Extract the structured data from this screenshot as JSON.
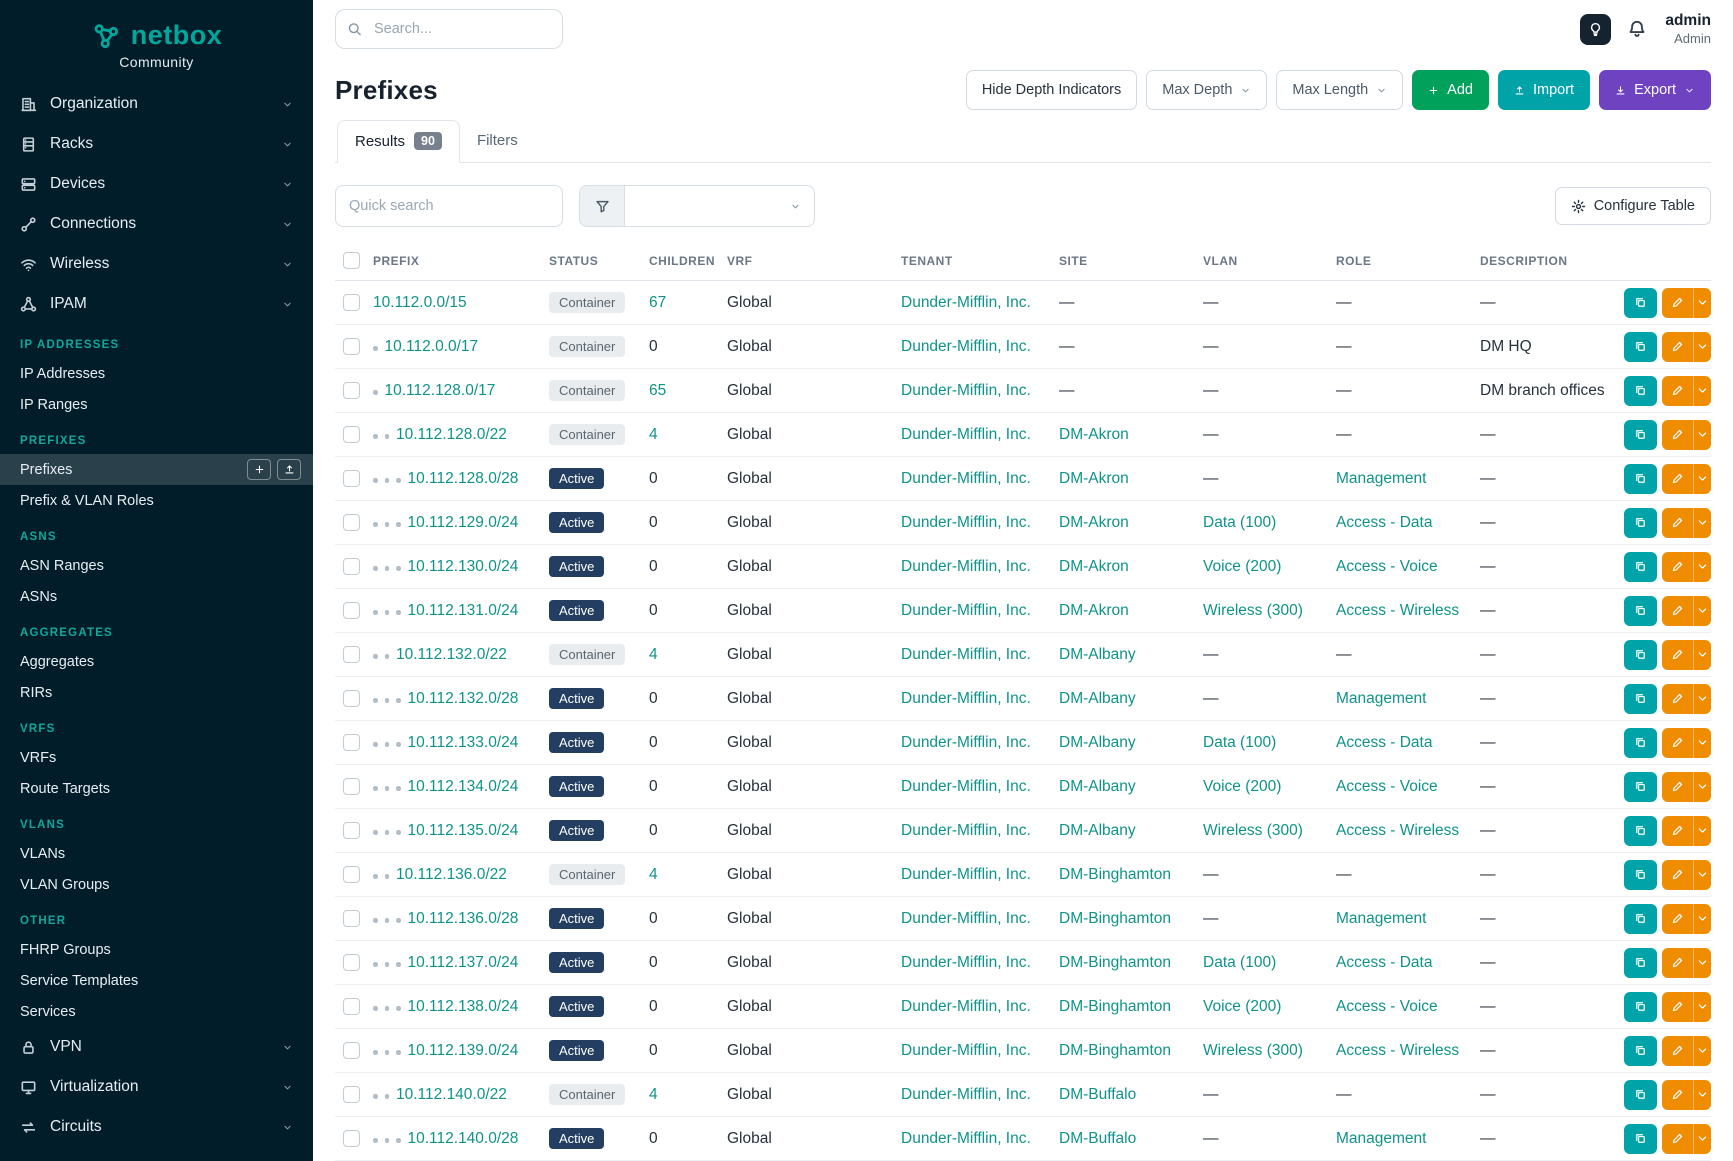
{
  "brand": {
    "name": "netbox",
    "subtitle": "Community"
  },
  "topbar": {
    "search_placeholder": "Search...",
    "user_name": "admin",
    "user_role": "Admin"
  },
  "sidebar": {
    "top_groups": [
      {
        "label": "Organization",
        "icon": "organization"
      },
      {
        "label": "Racks",
        "icon": "racks"
      },
      {
        "label": "Devices",
        "icon": "devices"
      },
      {
        "label": "Connections",
        "icon": "connections"
      },
      {
        "label": "Wireless",
        "icon": "wireless"
      },
      {
        "label": "IPAM",
        "icon": "ipam"
      }
    ],
    "sections": [
      {
        "heading": "IP ADDRESSES",
        "items": [
          {
            "label": "IP Addresses"
          },
          {
            "label": "IP Ranges"
          }
        ]
      },
      {
        "heading": "PREFIXES",
        "items": [
          {
            "label": "Prefixes",
            "active": true
          },
          {
            "label": "Prefix & VLAN Roles"
          }
        ]
      },
      {
        "heading": "ASNS",
        "items": [
          {
            "label": "ASN Ranges"
          },
          {
            "label": "ASNs"
          }
        ]
      },
      {
        "heading": "AGGREGATES",
        "items": [
          {
            "label": "Aggregates"
          },
          {
            "label": "RIRs"
          }
        ]
      },
      {
        "heading": "VRFS",
        "items": [
          {
            "label": "VRFs"
          },
          {
            "label": "Route Targets"
          }
        ]
      },
      {
        "heading": "VLANS",
        "items": [
          {
            "label": "VLANs"
          },
          {
            "label": "VLAN Groups"
          }
        ]
      },
      {
        "heading": "OTHER",
        "items": [
          {
            "label": "FHRP Groups"
          },
          {
            "label": "Service Templates"
          },
          {
            "label": "Services"
          }
        ]
      }
    ],
    "bottom_groups": [
      {
        "label": "VPN",
        "icon": "vpn"
      },
      {
        "label": "Virtualization",
        "icon": "virtualization"
      },
      {
        "label": "Circuits",
        "icon": "circuits"
      }
    ]
  },
  "page": {
    "title": "Prefixes",
    "toolbar": {
      "hide_depth": "Hide Depth Indicators",
      "max_depth": "Max Depth",
      "max_length": "Max Length",
      "add": "Add",
      "import": "Import",
      "export": "Export"
    },
    "tabs": [
      {
        "label": "Results",
        "badge": "90"
      },
      {
        "label": "Filters"
      }
    ],
    "quick_search_placeholder": "Quick search",
    "filter_select_value": "",
    "configure_table": "Configure Table"
  },
  "table": {
    "columns": [
      "PREFIX",
      "STATUS",
      "CHILDREN",
      "VRF",
      "TENANT",
      "SITE",
      "VLAN",
      "ROLE",
      "DESCRIPTION"
    ],
    "rows": [
      {
        "depth": 0,
        "prefix": "10.112.0.0/15",
        "status": "Container",
        "children": "67",
        "vrf": "Global",
        "tenant": "Dunder-Mifflin, Inc.",
        "site": "—",
        "vlan": "—",
        "role": "—",
        "description": "—"
      },
      {
        "depth": 1,
        "prefix": "10.112.0.0/17",
        "status": "Container",
        "children": "0",
        "vrf": "Global",
        "tenant": "Dunder-Mifflin, Inc.",
        "site": "—",
        "vlan": "—",
        "role": "—",
        "description": "DM HQ"
      },
      {
        "depth": 1,
        "prefix": "10.112.128.0/17",
        "status": "Container",
        "children": "65",
        "vrf": "Global",
        "tenant": "Dunder-Mifflin, Inc.",
        "site": "—",
        "vlan": "—",
        "role": "—",
        "description": "DM branch offices"
      },
      {
        "depth": 2,
        "prefix": "10.112.128.0/22",
        "status": "Container",
        "children": "4",
        "vrf": "Global",
        "tenant": "Dunder-Mifflin, Inc.",
        "site": "DM-Akron",
        "vlan": "—",
        "role": "—",
        "description": "—"
      },
      {
        "depth": 3,
        "prefix": "10.112.128.0/28",
        "status": "Active",
        "children": "0",
        "vrf": "Global",
        "tenant": "Dunder-Mifflin, Inc.",
        "site": "DM-Akron",
        "vlan": "—",
        "role": "Management",
        "description": "—"
      },
      {
        "depth": 3,
        "prefix": "10.112.129.0/24",
        "status": "Active",
        "children": "0",
        "vrf": "Global",
        "tenant": "Dunder-Mifflin, Inc.",
        "site": "DM-Akron",
        "vlan": "Data (100)",
        "role": "Access - Data",
        "description": "—"
      },
      {
        "depth": 3,
        "prefix": "10.112.130.0/24",
        "status": "Active",
        "children": "0",
        "vrf": "Global",
        "tenant": "Dunder-Mifflin, Inc.",
        "site": "DM-Akron",
        "vlan": "Voice (200)",
        "role": "Access - Voice",
        "description": "—"
      },
      {
        "depth": 3,
        "prefix": "10.112.131.0/24",
        "status": "Active",
        "children": "0",
        "vrf": "Global",
        "tenant": "Dunder-Mifflin, Inc.",
        "site": "DM-Akron",
        "vlan": "Wireless (300)",
        "role": "Access - Wireless",
        "description": "—"
      },
      {
        "depth": 2,
        "prefix": "10.112.132.0/22",
        "status": "Container",
        "children": "4",
        "vrf": "Global",
        "tenant": "Dunder-Mifflin, Inc.",
        "site": "DM-Albany",
        "vlan": "—",
        "role": "—",
        "description": "—"
      },
      {
        "depth": 3,
        "prefix": "10.112.132.0/28",
        "status": "Active",
        "children": "0",
        "vrf": "Global",
        "tenant": "Dunder-Mifflin, Inc.",
        "site": "DM-Albany",
        "vlan": "—",
        "role": "Management",
        "description": "—"
      },
      {
        "depth": 3,
        "prefix": "10.112.133.0/24",
        "status": "Active",
        "children": "0",
        "vrf": "Global",
        "tenant": "Dunder-Mifflin, Inc.",
        "site": "DM-Albany",
        "vlan": "Data (100)",
        "role": "Access - Data",
        "description": "—"
      },
      {
        "depth": 3,
        "prefix": "10.112.134.0/24",
        "status": "Active",
        "children": "0",
        "vrf": "Global",
        "tenant": "Dunder-Mifflin, Inc.",
        "site": "DM-Albany",
        "vlan": "Voice (200)",
        "role": "Access - Voice",
        "description": "—"
      },
      {
        "depth": 3,
        "prefix": "10.112.135.0/24",
        "status": "Active",
        "children": "0",
        "vrf": "Global",
        "tenant": "Dunder-Mifflin, Inc.",
        "site": "DM-Albany",
        "vlan": "Wireless (300)",
        "role": "Access - Wireless",
        "description": "—"
      },
      {
        "depth": 2,
        "prefix": "10.112.136.0/22",
        "status": "Container",
        "children": "4",
        "vrf": "Global",
        "tenant": "Dunder-Mifflin, Inc.",
        "site": "DM-Binghamton",
        "vlan": "—",
        "role": "—",
        "description": "—"
      },
      {
        "depth": 3,
        "prefix": "10.112.136.0/28",
        "status": "Active",
        "children": "0",
        "vrf": "Global",
        "tenant": "Dunder-Mifflin, Inc.",
        "site": "DM-Binghamton",
        "vlan": "—",
        "role": "Management",
        "description": "—"
      },
      {
        "depth": 3,
        "prefix": "10.112.137.0/24",
        "status": "Active",
        "children": "0",
        "vrf": "Global",
        "tenant": "Dunder-Mifflin, Inc.",
        "site": "DM-Binghamton",
        "vlan": "Data (100)",
        "role": "Access - Data",
        "description": "—"
      },
      {
        "depth": 3,
        "prefix": "10.112.138.0/24",
        "status": "Active",
        "children": "0",
        "vrf": "Global",
        "tenant": "Dunder-Mifflin, Inc.",
        "site": "DM-Binghamton",
        "vlan": "Voice (200)",
        "role": "Access - Voice",
        "description": "—"
      },
      {
        "depth": 3,
        "prefix": "10.112.139.0/24",
        "status": "Active",
        "children": "0",
        "vrf": "Global",
        "tenant": "Dunder-Mifflin, Inc.",
        "site": "DM-Binghamton",
        "vlan": "Wireless (300)",
        "role": "Access - Wireless",
        "description": "—"
      },
      {
        "depth": 2,
        "prefix": "10.112.140.0/22",
        "status": "Container",
        "children": "4",
        "vrf": "Global",
        "tenant": "Dunder-Mifflin, Inc.",
        "site": "DM-Buffalo",
        "vlan": "—",
        "role": "—",
        "description": "—"
      },
      {
        "depth": 3,
        "prefix": "10.112.140.0/28",
        "status": "Active",
        "children": "0",
        "vrf": "Global",
        "tenant": "Dunder-Mifflin, Inc.",
        "site": "DM-Buffalo",
        "vlan": "—",
        "role": "Management",
        "description": "—"
      }
    ]
  },
  "colors": {
    "brand_teal": "#00a79c",
    "link_teal": "#0f9389",
    "sidebar_bg": "#021d2a",
    "section_heading_teal": "#10a89c",
    "add_green": "#00a25b",
    "import_teal": "#00a3a8",
    "export_purple": "#6f42c1",
    "edit_orange": "#f08c00",
    "active_badge_navy": "#243e62",
    "container_badge_bg": "#e8ecef"
  }
}
